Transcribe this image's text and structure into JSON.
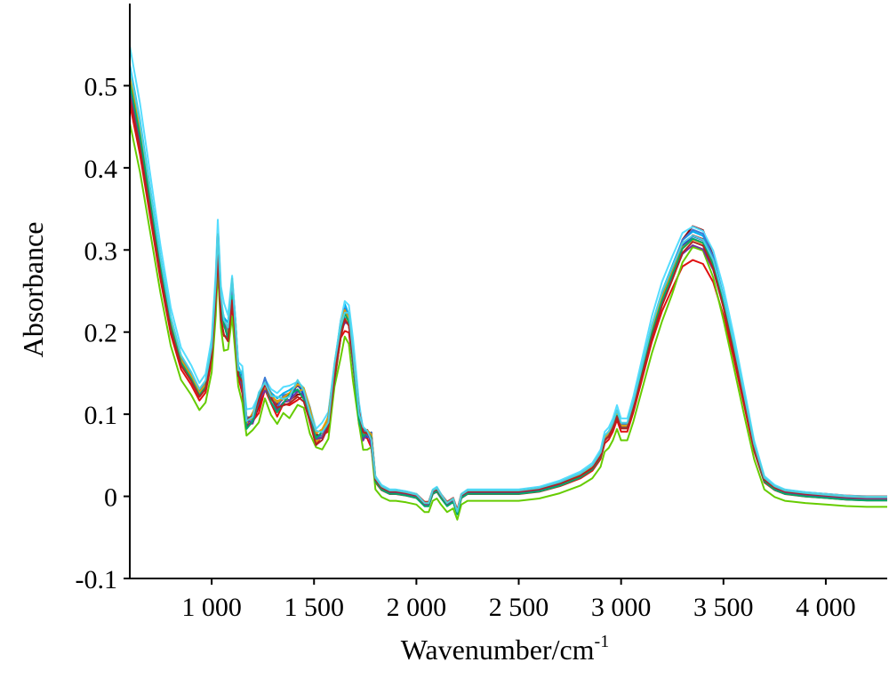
{
  "chart_data": {
    "type": "line",
    "title": "",
    "xlabel": "Wavenumber/cm",
    "xlabel_superscript": "-1",
    "ylabel": "Absorbance",
    "xlim": [
      600,
      4300
    ],
    "ylim": [
      -0.1,
      0.6
    ],
    "x_ticks": [
      1000,
      1500,
      2000,
      2500,
      3000,
      3500,
      4000
    ],
    "x_tick_labels": [
      "1 000",
      "1 500",
      "2 000",
      "2 500",
      "3 000",
      "3 500",
      "4 000"
    ],
    "y_ticks": [
      -0.1,
      0,
      0.1,
      0.2,
      0.3,
      0.4,
      0.5
    ],
    "y_tick_labels": [
      "-0.1",
      "0",
      "0.1",
      "0.2",
      "0.3",
      "0.4",
      "0.5"
    ],
    "grid": false,
    "legend": "none",
    "base_spectrum": {
      "x": [
        600,
        650,
        700,
        750,
        800,
        850,
        900,
        940,
        970,
        1000,
        1020,
        1030,
        1045,
        1060,
        1080,
        1100,
        1115,
        1130,
        1150,
        1170,
        1200,
        1230,
        1260,
        1290,
        1320,
        1350,
        1380,
        1420,
        1450,
        1480,
        1510,
        1540,
        1570,
        1600,
        1630,
        1650,
        1670,
        1690,
        1720,
        1740,
        1760,
        1780,
        1800,
        1830,
        1870,
        1900,
        1950,
        2000,
        2040,
        2060,
        2080,
        2100,
        2120,
        2150,
        2180,
        2200,
        2220,
        2250,
        2300,
        2400,
        2500,
        2600,
        2700,
        2800,
        2860,
        2900,
        2920,
        2940,
        2960,
        2980,
        3000,
        3030,
        3060,
        3100,
        3150,
        3200,
        3250,
        3300,
        3350,
        3400,
        3450,
        3500,
        3550,
        3600,
        3650,
        3700,
        3750,
        3800,
        3900,
        4000,
        4100,
        4200,
        4300
      ],
      "y": [
        0.505,
        0.44,
        0.36,
        0.28,
        0.21,
        0.165,
        0.145,
        0.125,
        0.135,
        0.175,
        0.255,
        0.31,
        0.23,
        0.21,
        0.2,
        0.25,
        0.205,
        0.15,
        0.14,
        0.09,
        0.095,
        0.115,
        0.135,
        0.12,
        0.11,
        0.115,
        0.12,
        0.13,
        0.125,
        0.1,
        0.07,
        0.075,
        0.09,
        0.15,
        0.2,
        0.22,
        0.21,
        0.17,
        0.1,
        0.075,
        0.075,
        0.07,
        0.02,
        0.01,
        0.005,
        0.005,
        0.003,
        0.0,
        -0.01,
        -0.01,
        0.005,
        0.008,
        0.0,
        -0.01,
        -0.005,
        -0.02,
        0.0,
        0.005,
        0.005,
        0.005,
        0.005,
        0.008,
        0.015,
        0.025,
        0.035,
        0.05,
        0.07,
        0.075,
        0.085,
        0.1,
        0.085,
        0.085,
        0.11,
        0.15,
        0.2,
        0.24,
        0.27,
        0.3,
        0.31,
        0.305,
        0.28,
        0.235,
        0.18,
        0.12,
        0.06,
        0.02,
        0.01,
        0.005,
        0.002,
        0.0,
        -0.002,
        -0.003,
        -0.003
      ]
    },
    "series": [
      {
        "color": "#8B0000",
        "scale": 1.0,
        "offset": 0.0,
        "peak_extra": 0.02
      },
      {
        "color": "#C00000",
        "scale": 0.97,
        "offset": 0.003,
        "peak_extra": 0.015
      },
      {
        "color": "#E01010",
        "scale": 0.95,
        "offset": -0.002,
        "peak_extra": -0.005
      },
      {
        "color": "#66CC00",
        "scale": 0.92,
        "offset": -0.01,
        "peak_extra": 0.03
      },
      {
        "color": "#00B0F0",
        "scale": 1.04,
        "offset": 0.0,
        "peak_extra": 0.0
      },
      {
        "color": "#55DDFF",
        "scale": 1.08,
        "offset": 0.003,
        "peak_extra": -0.01
      },
      {
        "color": "#1F4EBF",
        "scale": 1.0,
        "offset": 0.002,
        "peak_extra": 0.005
      },
      {
        "color": "#3A7BD5",
        "scale": 1.02,
        "offset": 0.001,
        "peak_extra": 0.008
      },
      {
        "color": "#E69A00",
        "scale": 1.01,
        "offset": 0.0,
        "peak_extra": 0.0
      },
      {
        "color": "#D4A017",
        "scale": 0.99,
        "offset": 0.002,
        "peak_extra": 0.004
      },
      {
        "color": "#7030A0",
        "scale": 0.98,
        "offset": 0.0,
        "peak_extra": 0.002
      },
      {
        "color": "#00A86B",
        "scale": 1.0,
        "offset": -0.002,
        "peak_extra": 0.006
      },
      {
        "color": "#B22222",
        "scale": 0.96,
        "offset": 0.001,
        "peak_extra": 0.012
      },
      {
        "color": "#4DD0E1",
        "scale": 1.03,
        "offset": 0.002,
        "peak_extra": -0.004
      }
    ]
  }
}
